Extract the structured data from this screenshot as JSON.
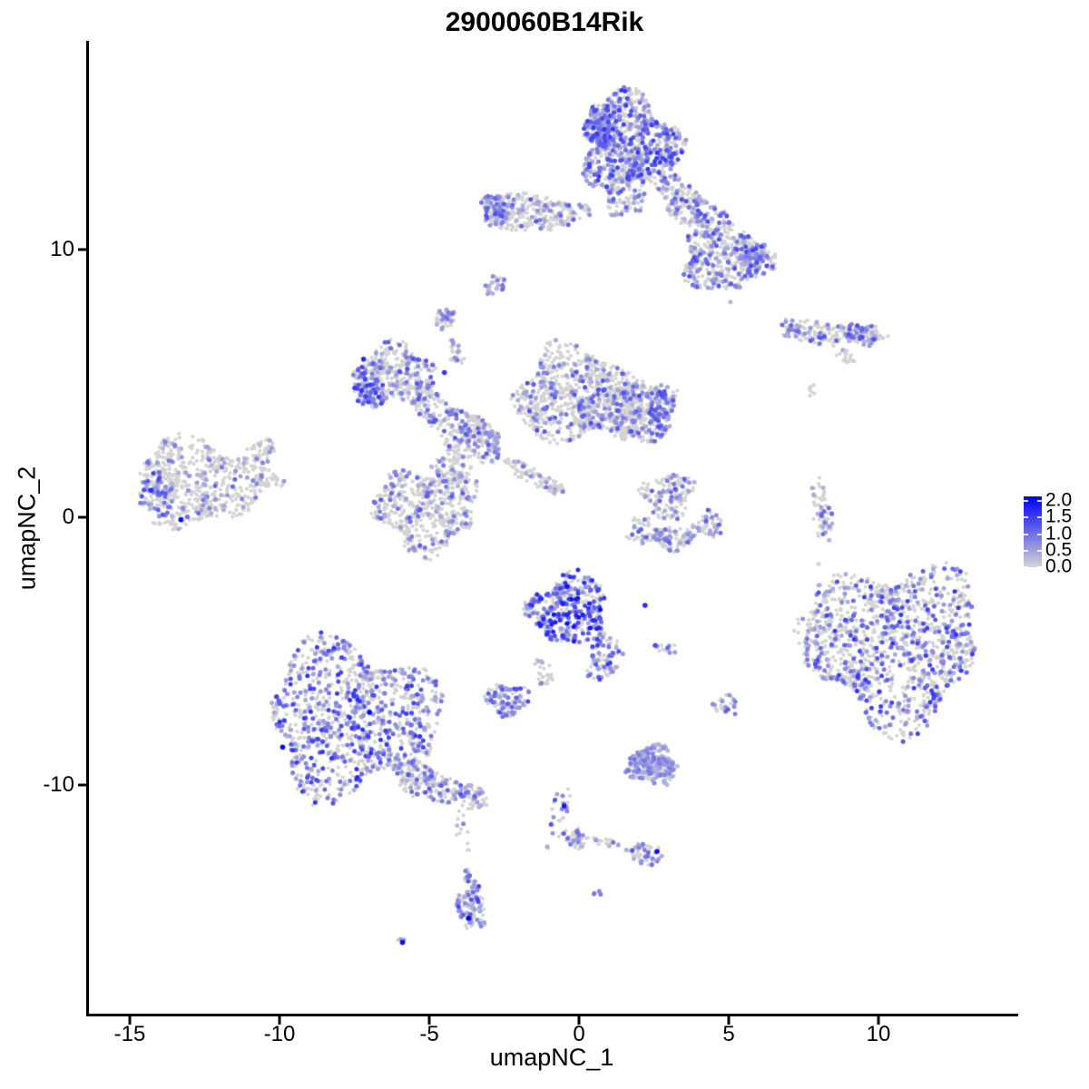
{
  "title": "2900060B14Rik",
  "axes": {
    "x": {
      "label": "umapNC_1",
      "tick_labels": [
        "-15",
        "-10",
        "-5",
        "0",
        "5",
        "10"
      ]
    },
    "y": {
      "label": "umapNC_2",
      "tick_labels": [
        "10",
        "0",
        "-10"
      ]
    }
  },
  "legend": {
    "tick_labels": [
      "2.0",
      "1.5",
      "1.0",
      "0.5",
      "0.0"
    ],
    "low_color": "#D3D3D3",
    "mid_color": "#6969E9",
    "high_color": "#0000FF",
    "vmin": 0.0,
    "vmax": 2.0
  },
  "chart_data": {
    "type": "scatter",
    "title": "2900060B14Rik",
    "xlabel": "umapNC_1",
    "ylabel": "umapNC_2",
    "xlim": [
      -16.4,
      14.6
    ],
    "ylim": [
      -18.6,
      17.8
    ],
    "x_ticks": [
      -15,
      -10,
      -5,
      0,
      5,
      10
    ],
    "y_ticks": [
      10,
      0,
      -10
    ],
    "grid": false,
    "legend_position": "right",
    "color_scale": {
      "low": "#D3D3D3",
      "high": "#0000FF",
      "domain": [
        0.0,
        2.0
      ]
    },
    "point_radius_px": {
      "background": 2.1,
      "expressed": 2.5,
      "highlight": 2.8
    },
    "seed": 42,
    "clusters": [
      {
        "name": "top-main",
        "cx": 1.7,
        "cy": 14.0,
        "rx": 1.6,
        "ry": 1.75,
        "rot": 25,
        "n": 850,
        "frac": 0.42,
        "vmax": 1.5
      },
      {
        "name": "top-main-edge",
        "cx": 0.8,
        "cy": 14.5,
        "rx": 0.6,
        "ry": 0.9,
        "rot": 20,
        "n": 150,
        "frac": 0.5,
        "vmax": 1.4
      },
      {
        "name": "top-neck",
        "cx": 1.5,
        "cy": 12.1,
        "rx": 0.65,
        "ry": 0.9,
        "rot": 0,
        "n": 110,
        "frac": 0.3,
        "vmax": 1.2
      },
      {
        "name": "top-right-band",
        "cx": 3.8,
        "cy": 11.6,
        "rx": 1.55,
        "ry": 0.6,
        "rot": -38,
        "n": 230,
        "frac": 0.35,
        "vmax": 1.3
      },
      {
        "name": "top-right-blob",
        "cx": 4.9,
        "cy": 9.6,
        "rx": 1.5,
        "ry": 1.15,
        "rot": 0,
        "n": 420,
        "frac": 0.32,
        "vmax": 1.3
      },
      {
        "name": "top-right-edge",
        "cx": 5.8,
        "cy": 9.8,
        "rx": 0.5,
        "ry": 0.6,
        "rot": 0,
        "n": 70,
        "frac": 0.6,
        "vmax": 1.4
      },
      {
        "name": "top-left-arm",
        "cx": -1.5,
        "cy": 11.4,
        "rx": 1.7,
        "ry": 0.7,
        "rot": -5,
        "n": 300,
        "frac": 0.2,
        "vmax": 1.2
      },
      {
        "name": "top-left-tip",
        "cx": -2.75,
        "cy": 11.45,
        "rx": 0.45,
        "ry": 0.55,
        "rot": 0,
        "n": 80,
        "frac": 0.5,
        "vmax": 1.3
      },
      {
        "name": "small-blob-f",
        "cx": -2.8,
        "cy": 8.7,
        "rx": 0.35,
        "ry": 0.4,
        "rot": -45,
        "n": 28,
        "frac": 0.45,
        "vmax": 1.0
      },
      {
        "name": "small-blob-g",
        "cx": -4.5,
        "cy": 7.4,
        "rx": 0.38,
        "ry": 0.42,
        "rot": 0,
        "n": 45,
        "frac": 0.38,
        "vmax": 1.0
      },
      {
        "name": "strand-h",
        "cx": -4.1,
        "cy": 6.1,
        "rx": 0.2,
        "ry": 0.55,
        "rot": 15,
        "n": 26,
        "frac": 0.25,
        "vmax": 1.0
      },
      {
        "name": "right-chain",
        "cx": 8.3,
        "cy": 6.9,
        "rx": 1.75,
        "ry": 0.42,
        "rot": -4,
        "n": 160,
        "frac": 0.28,
        "vmax": 1.2
      },
      {
        "name": "right-chain-tip",
        "cx": 9.5,
        "cy": 6.8,
        "rx": 0.55,
        "ry": 0.4,
        "rot": 0,
        "n": 55,
        "frac": 0.55,
        "vmax": 1.3
      },
      {
        "name": "chain-substrand",
        "cx": 8.9,
        "cy": 6.0,
        "rx": 0.35,
        "ry": 0.2,
        "rot": -40,
        "n": 22,
        "frac": 0.1,
        "vmax": 0.8
      },
      {
        "name": "stray-j",
        "cx": 7.75,
        "cy": 4.7,
        "rx": 0.3,
        "ry": 0.3,
        "rot": 0,
        "n": 7,
        "frac": 0,
        "vmax": 0
      },
      {
        "name": "central-upper-left",
        "cx": -6.2,
        "cy": 5.3,
        "rx": 1.4,
        "ry": 1.1,
        "rot": 10,
        "n": 360,
        "frac": 0.28,
        "vmax": 1.3
      },
      {
        "name": "central-left-edge",
        "cx": -7.0,
        "cy": 4.9,
        "rx": 0.5,
        "ry": 0.85,
        "rot": 10,
        "n": 90,
        "frac": 0.6,
        "vmax": 1.5
      },
      {
        "name": "central-arm",
        "cx": -4.3,
        "cy": 3.7,
        "rx": 1.6,
        "ry": 0.6,
        "rot": -33,
        "n": 190,
        "frac": 0.3,
        "vmax": 1.2
      },
      {
        "name": "central-junction",
        "cx": -3.5,
        "cy": 2.8,
        "rx": 0.95,
        "ry": 0.8,
        "rot": 0,
        "n": 170,
        "frac": 0.25,
        "vmax": 1.2
      },
      {
        "name": "central-right-lobe",
        "cx": 0.0,
        "cy": 4.5,
        "rx": 2.2,
        "ry": 1.7,
        "rot": -8,
        "n": 800,
        "frac": 0.22,
        "vmax": 1.3
      },
      {
        "name": "central-wing",
        "cx": 1.9,
        "cy": 4.0,
        "rx": 1.35,
        "ry": 1.15,
        "rot": 0,
        "n": 350,
        "frac": 0.26,
        "vmax": 1.2
      },
      {
        "name": "central-wing-edge",
        "cx": 2.75,
        "cy": 3.9,
        "rx": 0.4,
        "ry": 0.9,
        "rot": 0,
        "n": 80,
        "frac": 0.55,
        "vmax": 1.4
      },
      {
        "name": "central-bottom-lobe",
        "cx": -5.1,
        "cy": 0.3,
        "rx": 1.7,
        "ry": 1.55,
        "rot": 0,
        "n": 500,
        "frac": 0.2,
        "vmax": 1.2
      },
      {
        "name": "central-strand",
        "cx": -1.5,
        "cy": 1.5,
        "rx": 1.25,
        "ry": 0.28,
        "rot": -33,
        "n": 85,
        "frac": 0.15,
        "vmax": 1.0
      },
      {
        "name": "central-neck",
        "cx": -4.3,
        "cy": 1.7,
        "rx": 0.6,
        "ry": 0.6,
        "rot": 0,
        "n": 80,
        "frac": 0.2,
        "vmax": 1.0
      },
      {
        "name": "far-left",
        "cx": -12.7,
        "cy": 1.3,
        "rx": 2.05,
        "ry": 1.6,
        "rot": -8,
        "n": 560,
        "frac": 0.16,
        "vmax": 1.1
      },
      {
        "name": "far-left-edge",
        "cx": -14.1,
        "cy": 0.8,
        "rx": 0.55,
        "ry": 0.95,
        "rot": 15,
        "n": 70,
        "frac": 0.5,
        "vmax": 1.5
      },
      {
        "name": "far-left-arm-up",
        "cx": -10.6,
        "cy": 2.5,
        "rx": 0.65,
        "ry": 0.4,
        "rot": 35,
        "n": 55,
        "frac": 0.15,
        "vmax": 1.0
      },
      {
        "name": "far-left-arm-right",
        "cx": -10.4,
        "cy": 1.4,
        "rx": 0.55,
        "ry": 0.3,
        "rot": 0,
        "n": 40,
        "frac": 0.1,
        "vmax": 0.9
      },
      {
        "name": "mid-c-upper",
        "cx": 3.0,
        "cy": 0.8,
        "rx": 0.85,
        "ry": 0.85,
        "rot": 0,
        "n": 140,
        "frac": 0.25,
        "vmax": 1.2
      },
      {
        "name": "mid-c-arc1",
        "cx": 2.2,
        "cy": -0.5,
        "rx": 0.55,
        "ry": 0.5,
        "rot": 0,
        "n": 60,
        "frac": 0.3,
        "vmax": 1.2
      },
      {
        "name": "mid-c-arc2",
        "cx": 3.2,
        "cy": -0.8,
        "rx": 0.7,
        "ry": 0.45,
        "rot": 0,
        "n": 80,
        "frac": 0.3,
        "vmax": 1.2
      },
      {
        "name": "mid-c-arc3",
        "cx": 4.3,
        "cy": -0.3,
        "rx": 0.5,
        "ry": 0.45,
        "rot": 45,
        "n": 55,
        "frac": 0.3,
        "vmax": 1.2
      },
      {
        "name": "right-strip",
        "cx": 8.1,
        "cy": 0.2,
        "rx": 0.3,
        "ry": 1.2,
        "rot": 8,
        "n": 65,
        "frac": 0.3,
        "vmax": 1.1
      },
      {
        "name": "big-right",
        "cx": 10.5,
        "cy": -4.7,
        "rx": 2.85,
        "ry": 2.95,
        "rot": 0,
        "n": 1250,
        "frac": 0.3,
        "vmax": 1.5
      },
      {
        "name": "big-right-trail",
        "cx": 8.0,
        "cy": -4.3,
        "rx": 0.8,
        "ry": 0.75,
        "rot": 0,
        "n": 40,
        "frac": 0.08,
        "vmax": 0.8
      },
      {
        "name": "center-blob",
        "cx": -0.3,
        "cy": -3.5,
        "rx": 1.3,
        "ry": 1.35,
        "rot": 0,
        "n": 400,
        "frac": 0.5,
        "vmax": 1.9
      },
      {
        "name": "center-arm",
        "cx": 0.9,
        "cy": -5.3,
        "rx": 0.55,
        "ry": 0.85,
        "rot": -25,
        "n": 80,
        "frac": 0.45,
        "vmax": 1.5
      },
      {
        "name": "center-tail",
        "cx": -1.2,
        "cy": -5.8,
        "rx": 0.3,
        "ry": 0.6,
        "rot": 20,
        "n": 30,
        "frac": 0.1,
        "vmax": 0.8
      },
      {
        "name": "small-q",
        "cx": -2.4,
        "cy": -6.8,
        "rx": 0.75,
        "ry": 0.55,
        "rot": 0,
        "n": 110,
        "frac": 0.45,
        "vmax": 1.3
      },
      {
        "name": "tiny-r",
        "cx": 2.9,
        "cy": -4.9,
        "rx": 0.35,
        "ry": 0.25,
        "rot": 0,
        "n": 14,
        "frac": 0.3,
        "vmax": 1.3
      },
      {
        "name": "small-s",
        "cx": 4.9,
        "cy": -7.0,
        "rx": 0.4,
        "ry": 0.42,
        "rot": 0,
        "n": 28,
        "frac": 0.4,
        "vmax": 1.2
      },
      {
        "name": "bottom-left",
        "cx": -7.6,
        "cy": -7.5,
        "rx": 2.8,
        "ry": 2.75,
        "rot": 0,
        "n": 1050,
        "frac": 0.4,
        "vmax": 1.6
      },
      {
        "name": "bottom-left-tail",
        "cx": -5.1,
        "cy": -9.9,
        "rx": 1.35,
        "ry": 0.6,
        "rot": -28,
        "n": 200,
        "frac": 0.3,
        "vmax": 1.2
      },
      {
        "name": "bottom-left-tip",
        "cx": -3.6,
        "cy": -10.5,
        "rx": 0.55,
        "ry": 0.45,
        "rot": -20,
        "n": 60,
        "frac": 0.35,
        "vmax": 1.2
      },
      {
        "name": "lavender-u",
        "cx": 2.45,
        "cy": -9.3,
        "rx": 0.85,
        "ry": 0.7,
        "rot": -10,
        "n": 240,
        "frac": 0.65,
        "vmax": 0.9
      },
      {
        "name": "trail-v",
        "cx": -0.7,
        "cy": -11.2,
        "rx": 0.3,
        "ry": 1.3,
        "rot": -12,
        "n": 26,
        "frac": 0.4,
        "vmax": 1.5
      },
      {
        "name": "junction-v",
        "cx": -0.1,
        "cy": -12.0,
        "rx": 0.45,
        "ry": 0.38,
        "rot": 0,
        "n": 45,
        "frac": 0.4,
        "vmax": 1.2
      },
      {
        "name": "arm-w",
        "cx": 1.0,
        "cy": -12.2,
        "rx": 0.6,
        "ry": 0.2,
        "rot": -10,
        "n": 18,
        "frac": 0.25,
        "vmax": 1.0
      },
      {
        "name": "cluster-w",
        "cx": 2.2,
        "cy": -12.6,
        "rx": 0.6,
        "ry": 0.42,
        "rot": -15,
        "n": 55,
        "frac": 0.4,
        "vmax": 1.3
      },
      {
        "name": "pair-x",
        "cx": 0.6,
        "cy": -14.1,
        "rx": 0.18,
        "ry": 0.18,
        "rot": -45,
        "n": 4,
        "frac": 0.8,
        "vmax": 0.9
      },
      {
        "name": "strand-y",
        "cx": -3.9,
        "cy": -11.8,
        "rx": 0.22,
        "ry": 1.0,
        "rot": 8,
        "n": 12,
        "frac": 0.2,
        "vmax": 1.0
      },
      {
        "name": "blob-y",
        "cx": -3.6,
        "cy": -14.4,
        "rx": 0.45,
        "ry": 1.05,
        "rot": 5,
        "n": 120,
        "frac": 0.5,
        "vmax": 1.4
      },
      {
        "name": "dot-z",
        "cx": -5.95,
        "cy": -15.9,
        "rx": 0.2,
        "ry": 0.14,
        "rot": -30,
        "n": 3,
        "frac": 0.6,
        "vmax": 0.8
      },
      {
        "name": "stray-right-1",
        "cx": 8.0,
        "cy": -1.7,
        "rx": 0.1,
        "ry": 0.1,
        "rot": 0,
        "n": 2,
        "frac": 0,
        "vmax": 0
      },
      {
        "name": "stray-right-2",
        "cx": 8.8,
        "cy": -2.6,
        "rx": 0.12,
        "ry": 0.1,
        "rot": 0,
        "n": 2,
        "frac": 0,
        "vmax": 0
      },
      {
        "name": "lone-dot",
        "cx": 5.1,
        "cy": 8.1,
        "rx": 0.08,
        "ry": 0.08,
        "rot": 0,
        "n": 1,
        "frac": 1,
        "vmax": 0.95
      }
    ],
    "highlight_points": [
      {
        "x": -7.0,
        "y": -7.3,
        "v": 2.0
      },
      {
        "x": -9.9,
        "y": -8.6,
        "v": 2.0
      },
      {
        "x": -13.3,
        "y": -0.1,
        "v": 1.9
      },
      {
        "x": -3.7,
        "y": -15.0,
        "v": 2.0
      },
      {
        "x": -5.9,
        "y": -15.9,
        "v": 1.9
      },
      {
        "x": -0.5,
        "y": -10.8,
        "v": 1.8
      },
      {
        "x": 2.6,
        "y": -12.5,
        "v": 1.9
      },
      {
        "x": -0.4,
        "y": -2.6,
        "v": 1.8
      },
      {
        "x": -7.2,
        "y": 5.9,
        "v": 1.6
      },
      {
        "x": -14.3,
        "y": 1.0,
        "v": 1.6
      },
      {
        "x": -4.5,
        "y": 5.4,
        "v": 1.5
      },
      {
        "x": 2.2,
        "y": -3.3,
        "v": 1.6
      }
    ]
  }
}
